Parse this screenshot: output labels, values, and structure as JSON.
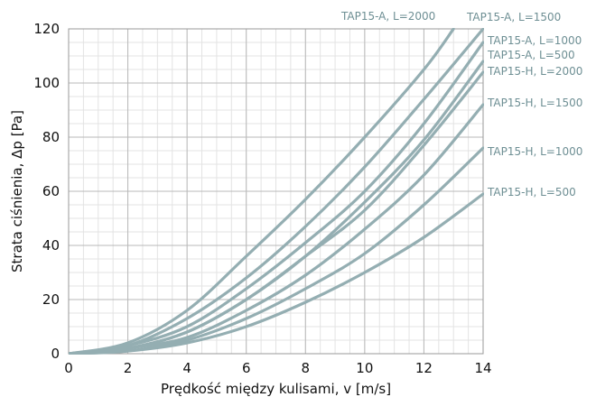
{
  "chart_data": {
    "type": "line",
    "xlabel": "Prędkość między kulisami, v [m/s]",
    "ylabel": "Strata ciśnienia, Δp [Pa]",
    "xlim": [
      0,
      14
    ],
    "ylim": [
      0,
      120
    ],
    "x_ticks": [
      0,
      2,
      4,
      6,
      8,
      10,
      12,
      14
    ],
    "y_ticks": [
      0,
      20,
      40,
      60,
      80,
      100,
      120
    ],
    "x_tick_labels": [
      "0",
      "2",
      "4",
      "6",
      "8",
      "10",
      "12",
      "14"
    ],
    "y_tick_labels": [
      "0",
      "20",
      "40",
      "60",
      "80",
      "100",
      "120"
    ],
    "grid": true,
    "x_minor_step": 0.5,
    "y_minor_step": 5,
    "colors": {
      "curve": "#94aeb2",
      "label": "#6e8f94",
      "grid_major": "#b9b9b9",
      "grid_minor": "#e3e3e3"
    },
    "series": [
      {
        "name": "TAP15-A, L=2000",
        "x": [
          0,
          2,
          4,
          6,
          8,
          10,
          12,
          13
        ],
        "y": [
          0,
          4,
          16,
          36,
          57,
          80,
          105,
          120
        ]
      },
      {
        "name": "TAP15-A, L=1500",
        "x": [
          0,
          2,
          4,
          6,
          8,
          10,
          12,
          14
        ],
        "y": [
          0,
          3,
          13,
          28,
          47,
          69,
          94,
          120
        ]
      },
      {
        "name": "TAP15-A, L=1000",
        "x": [
          0,
          2,
          4,
          6,
          8,
          10,
          12,
          14
        ],
        "y": [
          0,
          3,
          10,
          24,
          41,
          60,
          85,
          115
        ]
      },
      {
        "name": "TAP15-A, L=500",
        "x": [
          0,
          2,
          4,
          6,
          8,
          10,
          12,
          14
        ],
        "y": [
          0,
          2,
          8,
          20,
          36,
          56,
          79,
          108
        ]
      },
      {
        "name": "TAP15-H, L=2000",
        "x": [
          0,
          2,
          4,
          6,
          8,
          10,
          12,
          14
        ],
        "y": [
          0,
          2,
          8,
          20,
          36,
          53,
          77,
          104
        ]
      },
      {
        "name": "TAP15-H, L=1500",
        "x": [
          0,
          2,
          4,
          6,
          8,
          10,
          12,
          14
        ],
        "y": [
          0,
          2,
          6,
          16,
          29,
          46,
          66,
          92
        ]
      },
      {
        "name": "TAP15-H, L=1000",
        "x": [
          0,
          2,
          4,
          6,
          8,
          10,
          12,
          14
        ],
        "y": [
          0,
          1,
          5,
          13,
          24,
          37,
          55,
          76
        ]
      },
      {
        "name": "TAP15-H, L=500",
        "x": [
          0,
          2,
          4,
          6,
          8,
          10,
          12,
          14
        ],
        "y": [
          0,
          1,
          4,
          10,
          19,
          30,
          43,
          59
        ]
      }
    ]
  }
}
